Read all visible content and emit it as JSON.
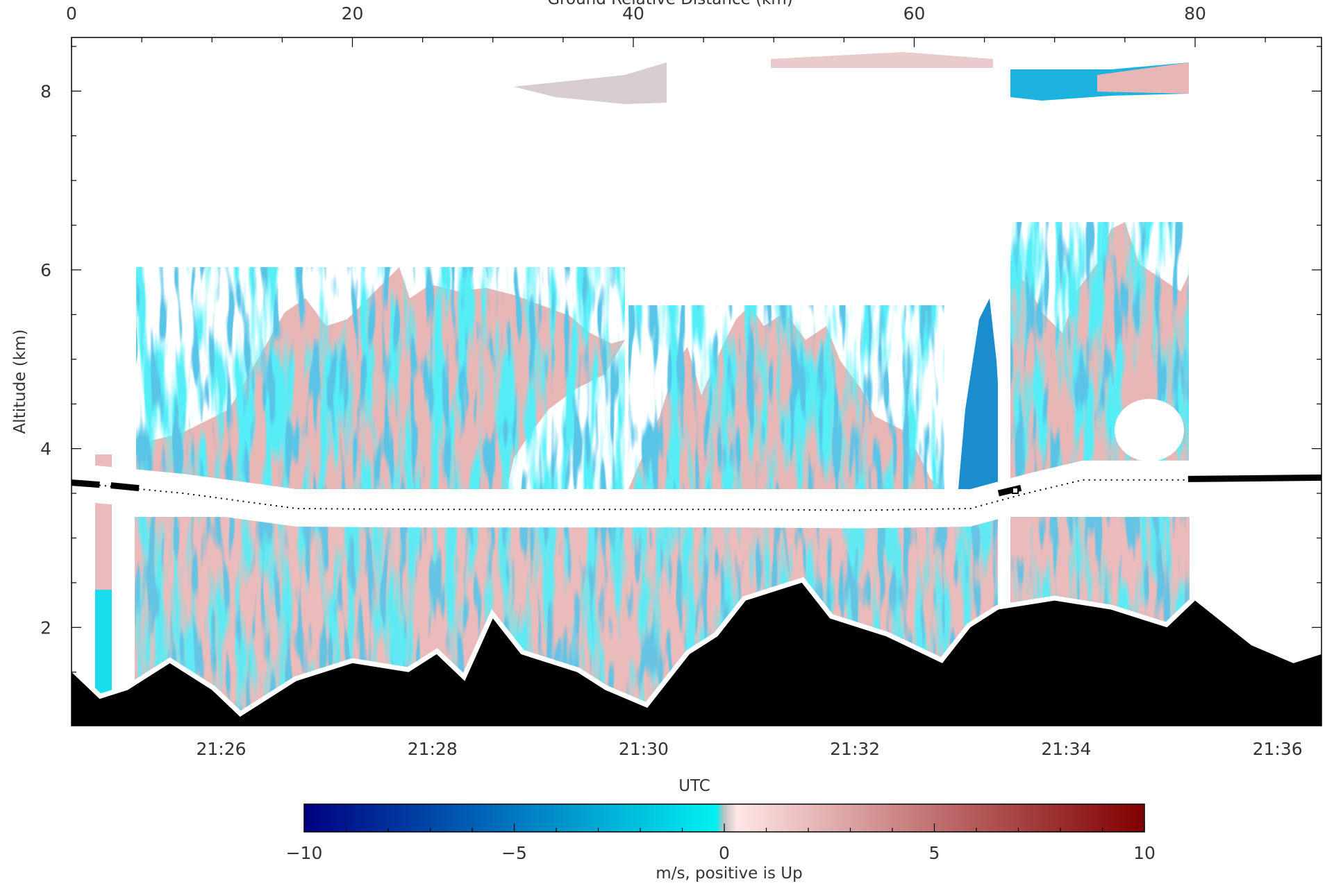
{
  "chart_data": {
    "type": "heatmap",
    "title": "",
    "x_top_axis": {
      "label": "Ground Relative Distance (km)",
      "range": [
        0,
        89
      ],
      "ticks": [
        0,
        20,
        40,
        60,
        80
      ],
      "tick_labels": [
        "0",
        "20",
        "40",
        "60",
        "80"
      ]
    },
    "x_bottom_axis": {
      "label": "UTC",
      "range": [
        "21:24:35",
        "21:36:25"
      ],
      "ticks": [
        "21:26",
        "21:28",
        "21:30",
        "21:32",
        "21:34",
        "21:36"
      ],
      "tick_labels": [
        "21:26",
        "21:28",
        "21:30",
        "21:32",
        "21:34",
        "21:36"
      ]
    },
    "y_axis": {
      "label": "Altitude (km)",
      "range": [
        0.9,
        8.6
      ],
      "ticks": [
        2,
        4,
        6,
        8
      ],
      "tick_labels": [
        "2",
        "4",
        "6",
        "8"
      ]
    },
    "colorbar": {
      "label": "m/s, positive is Up",
      "range": [
        -10,
        10
      ],
      "ticks": [
        -10,
        -5,
        0,
        5,
        10
      ],
      "tick_labels": [
        "−10",
        "−5",
        "0",
        "5",
        "10"
      ],
      "stops": [
        {
          "value": -10,
          "color": "#000080"
        },
        {
          "value": -5,
          "color": "#0077c0"
        },
        {
          "value": -0.2,
          "color": "#00f0f0"
        },
        {
          "value": 0,
          "color": "#c0c0c0"
        },
        {
          "value": 0.3,
          "color": "#ffe6e6"
        },
        {
          "value": 5,
          "color": "#c07070"
        },
        {
          "value": 10,
          "color": "#800000"
        }
      ]
    },
    "colors": {
      "updraft": "#e9b6b6",
      "updraft_strong": "#cf8585",
      "downdraft": "#19dced",
      "downdraft_strong": "#1b8ccd",
      "terrain": "#000000"
    },
    "series": [
      {
        "name": "aircraft altitude",
        "style": "dotted",
        "x_km": [
          0,
          8,
          16,
          24,
          32,
          40,
          48,
          56,
          64,
          68,
          72,
          80,
          89
        ],
        "y_km": [
          3.62,
          3.5,
          3.33,
          3.32,
          3.32,
          3.32,
          3.32,
          3.31,
          3.33,
          3.5,
          3.65,
          3.65,
          3.66
        ]
      },
      {
        "name": "terrain",
        "x_km": [
          0,
          2,
          4,
          7,
          10,
          12,
          16,
          20,
          24,
          26,
          28,
          30,
          32,
          36,
          38,
          41,
          44,
          46,
          48,
          52,
          54,
          58,
          62,
          64,
          66,
          70,
          74,
          78,
          80,
          84,
          87,
          89
        ],
        "y_km": [
          1.5,
          1.2,
          1.3,
          1.6,
          1.3,
          1.0,
          1.4,
          1.6,
          1.5,
          1.7,
          1.4,
          2.1,
          1.7,
          1.5,
          1.3,
          1.1,
          1.7,
          1.9,
          2.3,
          2.5,
          2.1,
          1.9,
          1.6,
          2.0,
          2.2,
          2.3,
          2.2,
          2.0,
          2.3,
          1.8,
          1.6,
          1.7
        ]
      }
    ]
  }
}
